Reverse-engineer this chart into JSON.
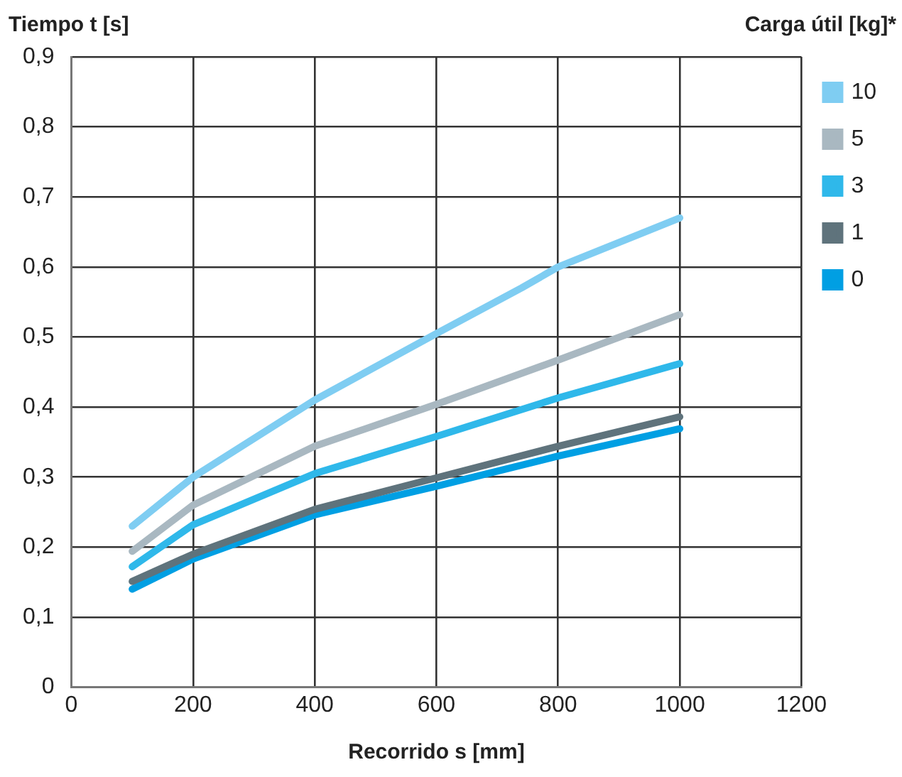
{
  "chart_data": {
    "type": "line",
    "xlabel": "Recorrido s [mm]",
    "ylabel": "Tiempo t [s]",
    "legend_title": "Carga útil [kg]*",
    "x": [
      100,
      200,
      400,
      600,
      800,
      1000
    ],
    "series": [
      {
        "name": "10",
        "color": "#7fcdf2",
        "x": [
          100,
          200,
          400,
          600,
          740,
          800,
          1000
        ],
        "values": [
          0.23,
          0.3,
          0.41,
          0.505,
          0.57,
          0.6,
          0.67
        ]
      },
      {
        "name": "5",
        "color": "#a9b8c1",
        "values": [
          0.194,
          0.26,
          0.344,
          0.404,
          0.467,
          0.532
        ]
      },
      {
        "name": "3",
        "color": "#2fb8ea",
        "values": [
          0.172,
          0.232,
          0.305,
          0.358,
          0.413,
          0.462
        ]
      },
      {
        "name": "1",
        "color": "#5f737c",
        "values": [
          0.151,
          0.19,
          0.254,
          0.299,
          0.344,
          0.386
        ]
      },
      {
        "name": "0",
        "color": "#009fe3",
        "values": [
          0.14,
          0.183,
          0.246,
          0.287,
          0.33,
          0.369
        ]
      }
    ],
    "xlim": [
      0,
      1200
    ],
    "xticks": [
      0,
      200,
      400,
      600,
      800,
      1000,
      1200
    ],
    "ylim": [
      0,
      0.9
    ],
    "yticks": [
      {
        "value": 0,
        "label": "0"
      },
      {
        "value": 0.1,
        "label": "0,1"
      },
      {
        "value": 0.2,
        "label": "0,2"
      },
      {
        "value": 0.3,
        "label": "0,3"
      },
      {
        "value": 0.4,
        "label": "0,4"
      },
      {
        "value": 0.5,
        "label": "0,5"
      },
      {
        "value": 0.6,
        "label": "0,6"
      },
      {
        "value": 0.7,
        "label": "0,7"
      },
      {
        "value": 0.8,
        "label": "0,8"
      },
      {
        "value": 0.9,
        "label": "0,9"
      }
    ],
    "grid": true,
    "legend": "top right",
    "marker": "none",
    "line_style": "solid"
  }
}
